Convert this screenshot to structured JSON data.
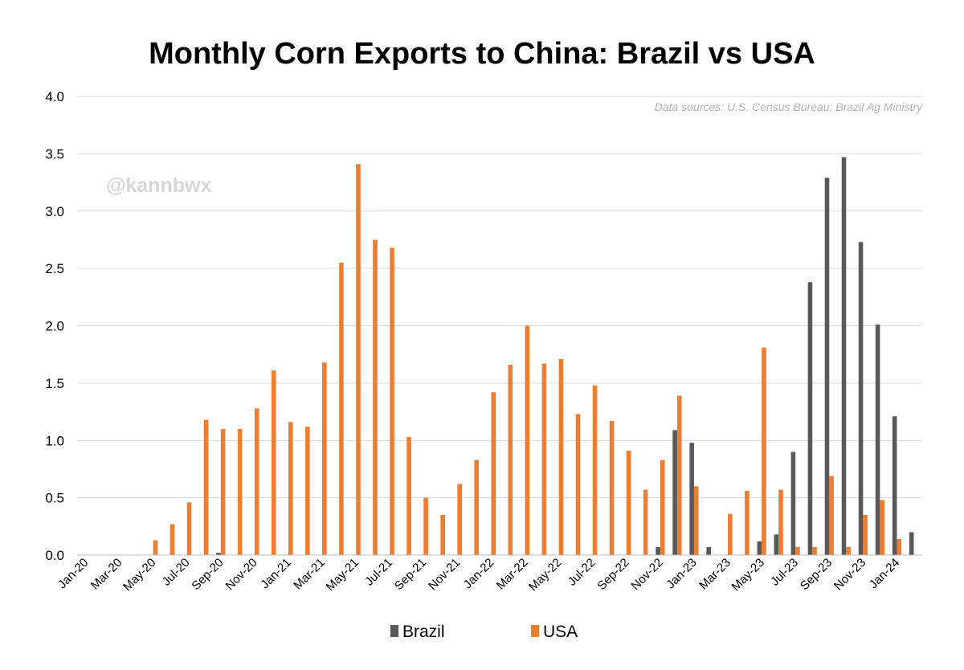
{
  "chart_data": {
    "type": "bar",
    "title": "Monthly Corn Exports to China: Brazil vs USA",
    "source_note": "Data sources: U.S. Census Bureau; Brazil Ag Ministry",
    "watermark": "@kannbwx",
    "xlabel": "",
    "ylabel": "",
    "ylim": [
      0,
      4.0
    ],
    "y_ticks": [
      "0.0",
      "0.5",
      "1.0",
      "1.5",
      "2.0",
      "2.5",
      "3.0",
      "3.5",
      "4.0"
    ],
    "grid": true,
    "legend_position": "bottom-center",
    "categories": [
      "Jan-20",
      "Feb-20",
      "Mar-20",
      "Apr-20",
      "May-20",
      "Jun-20",
      "Jul-20",
      "Aug-20",
      "Sep-20",
      "Oct-20",
      "Nov-20",
      "Dec-20",
      "Jan-21",
      "Feb-21",
      "Mar-21",
      "Apr-21",
      "May-21",
      "Jun-21",
      "Jul-21",
      "Aug-21",
      "Sep-21",
      "Oct-21",
      "Nov-21",
      "Dec-21",
      "Jan-22",
      "Feb-22",
      "Mar-22",
      "Apr-22",
      "May-22",
      "Jun-22",
      "Jul-22",
      "Aug-22",
      "Sep-22",
      "Oct-22",
      "Nov-22",
      "Dec-22",
      "Jan-23",
      "Feb-23",
      "Mar-23",
      "Apr-23",
      "May-23",
      "Jun-23",
      "Jul-23",
      "Aug-23",
      "Sep-23",
      "Oct-23",
      "Nov-23",
      "Dec-23",
      "Jan-24",
      "Feb-24"
    ],
    "x_tick_labels": [
      "Jan-20",
      "Mar-20",
      "May-20",
      "Jul-20",
      "Sep-20",
      "Nov-20",
      "Jan-21",
      "Mar-21",
      "May-21",
      "Jul-21",
      "Sep-21",
      "Nov-21",
      "Jan-22",
      "Mar-22",
      "May-22",
      "Jul-22",
      "Sep-22",
      "Nov-22",
      "Jan-23",
      "Mar-23",
      "May-23",
      "Jul-23",
      "Sep-23",
      "Nov-23",
      "Jan-24"
    ],
    "series": [
      {
        "name": "Brazil",
        "color": "#595959",
        "values": [
          0,
          0,
          0,
          0,
          0,
          0,
          0,
          0,
          0.02,
          0,
          0,
          0,
          0,
          0,
          0,
          0,
          0,
          0,
          0,
          0,
          0,
          0,
          0,
          0,
          0,
          0,
          0,
          0,
          0,
          0,
          0,
          0,
          0,
          0,
          0.07,
          1.09,
          0.98,
          0.07,
          0,
          0,
          0.12,
          0.18,
          0.9,
          2.38,
          3.29,
          3.47,
          2.73,
          2.01,
          1.21,
          0.2
        ]
      },
      {
        "name": "USA",
        "color": "#ED7D31",
        "values": [
          0,
          0,
          0,
          0,
          0.13,
          0.27,
          0.46,
          1.18,
          1.1,
          1.1,
          1.28,
          1.61,
          1.16,
          1.12,
          1.68,
          2.55,
          3.41,
          2.75,
          2.68,
          1.03,
          0.5,
          0.35,
          0.62,
          0.83,
          1.42,
          1.66,
          2.0,
          1.67,
          1.71,
          1.23,
          1.48,
          1.17,
          0.91,
          0.57,
          0.83,
          1.39,
          0.6,
          0,
          0.36,
          0.56,
          1.81,
          0.57,
          0.07,
          0.07,
          0.69,
          0.07,
          0.35,
          0.48,
          0.14,
          0
        ]
      }
    ]
  }
}
